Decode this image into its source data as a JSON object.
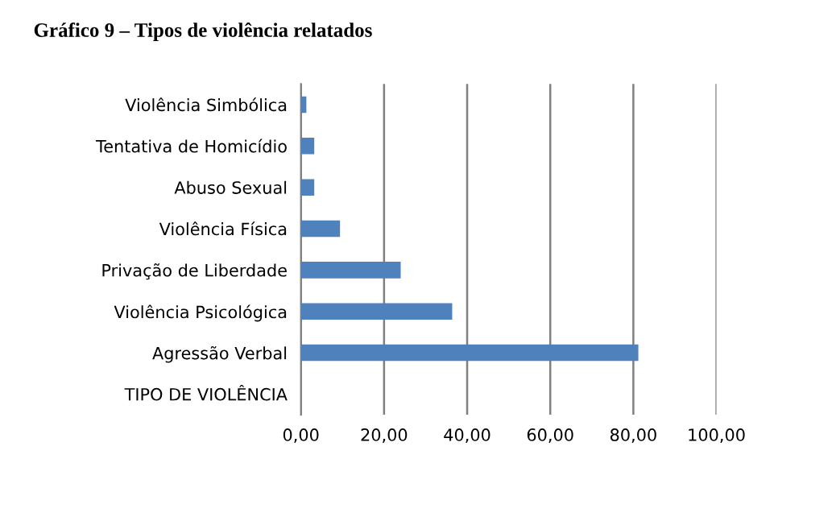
{
  "chart_data": {
    "type": "bar",
    "orientation": "horizontal",
    "title": "Gráfico 9 – Tipos de violência relatados",
    "categories": [
      "Violência Simbólica",
      "Tentativa de Homicídio",
      "Abuso Sexual",
      "Violência Física",
      "Privação de Liberdade",
      "Violência Psicológica",
      "Agressão Verbal",
      "TIPO DE VIOLÊNCIA"
    ],
    "values": [
      1.3,
      3.2,
      3.2,
      9.4,
      24,
      36.4,
      81.2,
      null
    ],
    "color": "#4f81bd",
    "xlim": [
      0,
      100
    ],
    "xticks": [
      {
        "value": 0,
        "label": "0,00"
      },
      {
        "value": 20,
        "label": "20,00"
      },
      {
        "value": 40,
        "label": "40,00"
      },
      {
        "value": 60,
        "label": "60,00"
      },
      {
        "value": 80,
        "label": "80,00"
      },
      {
        "value": 100,
        "label": "100,00"
      }
    ],
    "grid": "x"
  }
}
